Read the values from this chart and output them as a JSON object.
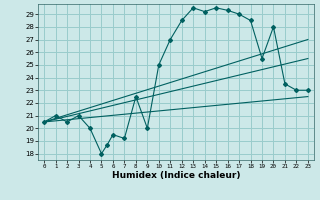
{
  "title": "",
  "xlabel": "Humidex (Indice chaleur)",
  "bg_color": "#cce8e8",
  "grid_color": "#99cccc",
  "line_color": "#006060",
  "xlim": [
    -0.5,
    23.5
  ],
  "ylim": [
    17.5,
    29.8
  ],
  "xticks": [
    0,
    1,
    2,
    3,
    4,
    5,
    6,
    7,
    8,
    9,
    10,
    11,
    12,
    13,
    14,
    15,
    16,
    17,
    18,
    19,
    20,
    21,
    22,
    23
  ],
  "yticks": [
    18,
    19,
    20,
    21,
    22,
    23,
    24,
    25,
    26,
    27,
    28,
    29
  ],
  "main_x": [
    0,
    1,
    2,
    3,
    4,
    5,
    5.5,
    6,
    7,
    8,
    9,
    10,
    11,
    12,
    13,
    14,
    15,
    16,
    17,
    18,
    19,
    20,
    21,
    22,
    23
  ],
  "main_y": [
    20.5,
    21.0,
    20.5,
    21.0,
    20.0,
    18.0,
    18.7,
    19.5,
    19.2,
    22.5,
    20.0,
    25.0,
    27.0,
    28.5,
    29.5,
    29.2,
    29.5,
    29.3,
    29.0,
    28.5,
    25.5,
    28.0,
    23.5,
    23.0,
    23.0
  ],
  "line1_x": [
    0,
    23
  ],
  "line1_y": [
    20.5,
    27.0
  ],
  "line2_x": [
    0,
    23
  ],
  "line2_y": [
    20.5,
    25.5
  ],
  "line3_x": [
    0,
    23
  ],
  "line3_y": [
    20.5,
    22.5
  ]
}
